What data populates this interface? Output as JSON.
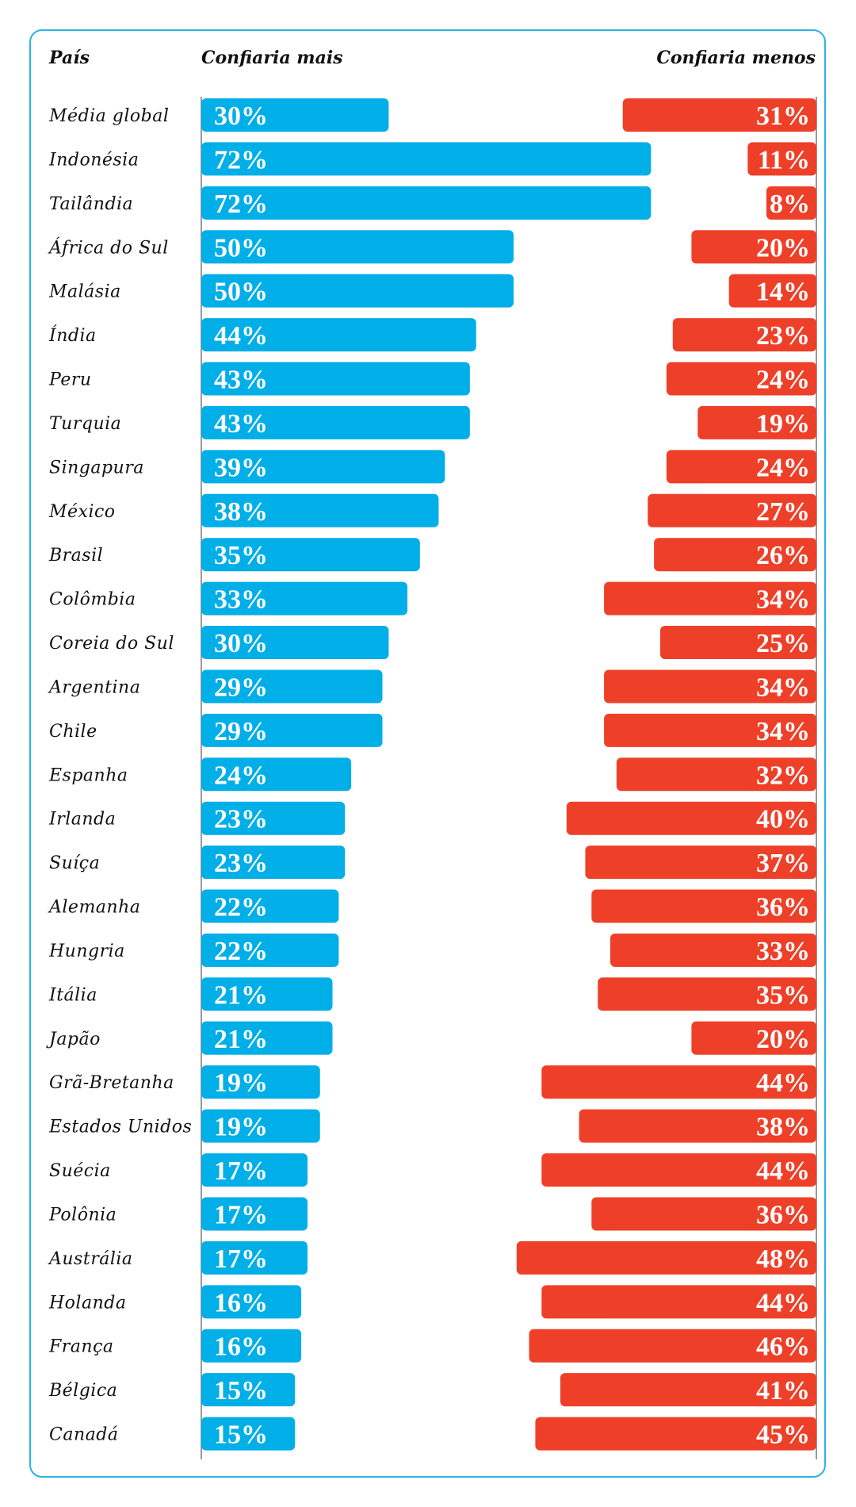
{
  "chart_data": {
    "type": "bar",
    "headers": {
      "country": "País",
      "more": "Confiaria mais",
      "less": "Confiaria menos"
    },
    "categories": [
      "Média global",
      "Indonésia",
      "Tailândia",
      "África do Sul",
      "Malásia",
      "Índia",
      "Peru",
      "Turquia",
      "Singapura",
      "México",
      "Brasil",
      "Colômbia",
      "Coreia do Sul",
      "Argentina",
      "Chile",
      "Espanha",
      "Irlanda",
      "Suíça",
      "Alemanha",
      "Hungria",
      "Itália",
      "Japão",
      "Grã-Bretanha",
      "Estados Unidos",
      "Suécia",
      "Polônia",
      "Austrália",
      "Holanda",
      "França",
      "Bélgica",
      "Canadá"
    ],
    "series": [
      {
        "name": "Confiaria mais",
        "color": "#00aee8",
        "values": [
          30,
          72,
          72,
          50,
          50,
          44,
          43,
          43,
          39,
          38,
          35,
          33,
          30,
          29,
          29,
          24,
          23,
          23,
          22,
          22,
          21,
          21,
          19,
          19,
          17,
          17,
          17,
          16,
          16,
          15,
          15
        ],
        "labels": [
          "30%",
          "72%",
          "72%",
          "50%",
          "50%",
          "44%",
          "43%",
          "43%",
          "39%",
          "38%",
          "35%",
          "33%",
          "30%",
          "29%",
          "29%",
          "24%",
          "23%",
          "23%",
          "22%",
          "22%",
          "21%",
          "21%",
          "19%",
          "19%",
          "17%",
          "17%",
          "17%",
          "16%",
          "16%",
          "15%",
          "15%"
        ]
      },
      {
        "name": "Confiaria menos",
        "color": "#ee4029",
        "values": [
          31,
          11,
          8,
          20,
          14,
          23,
          24,
          19,
          24,
          27,
          26,
          34,
          25,
          34,
          34,
          32,
          40,
          37,
          36,
          33,
          35,
          20,
          44,
          38,
          44,
          36,
          48,
          44,
          46,
          41,
          45
        ],
        "labels": [
          "31%",
          "11%",
          "8%",
          "20%",
          "14%",
          "23%",
          "24%",
          "19%",
          "24%",
          "27%",
          "26%",
          "34%",
          "25%",
          "34%",
          "34%",
          "32%",
          "40%",
          "37%",
          "36%",
          "33%",
          "35%",
          "20%",
          "44%",
          "38%",
          "44%",
          "36%",
          "48%",
          "44%",
          "46%",
          "41%",
          "45%"
        ]
      }
    ],
    "axis_line_color": "#999999"
  }
}
